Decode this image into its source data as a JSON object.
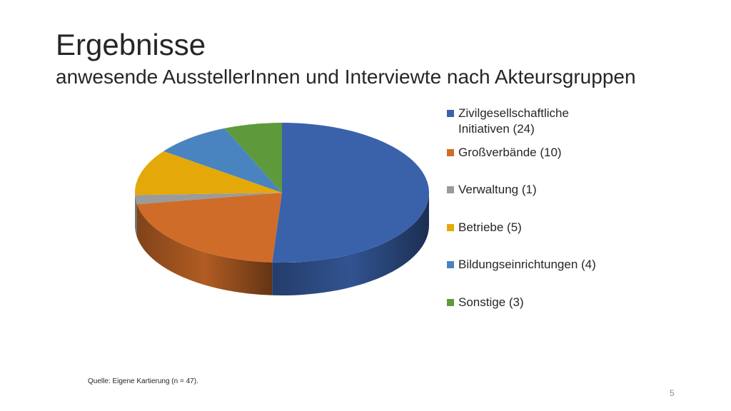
{
  "slide": {
    "title": "Ergebnisse",
    "subtitle": "anwesende AusstellerInnen und Interviewte nach Akteursgruppen",
    "source": "Quelle: Eigene Kartierung (n = 47).",
    "page_number": "5"
  },
  "chart_data": {
    "type": "pie",
    "style": "3d",
    "title": "",
    "categories": [
      "Zivilgesellschaftliche Initiativen",
      "Großverbände",
      "Verwaltung",
      "Betriebe",
      "Bildungseinrichtungen",
      "Sonstige"
    ],
    "values": [
      24,
      10,
      1,
      5,
      4,
      3
    ],
    "colors": [
      "#3A62AB",
      "#D06C29",
      "#9B9B9B",
      "#E4A908",
      "#4A84C0",
      "#5E9A3B"
    ],
    "legend": {
      "placement": "right",
      "labels": [
        "Zivilgesellschaftliche Initiativen (24)",
        "Großverbände (10)",
        "Verwaltung (1)",
        "Betriebe (5)",
        "Bildungseinrichtungen (4)",
        "Sonstige (3)"
      ]
    }
  }
}
